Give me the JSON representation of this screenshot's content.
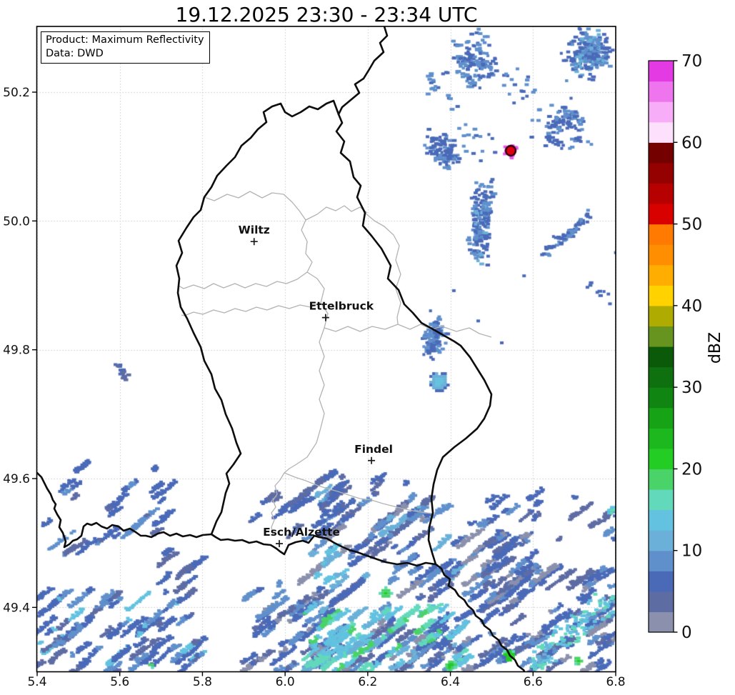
{
  "title": "19.12.2025 23:30 - 23:34 UTC",
  "info_box": {
    "line1": "Product: Maximum Reflectivity",
    "line2": "Data: DWD"
  },
  "chart_data": {
    "type": "heatmap",
    "title": "19.12.2025 23:30 - 23:34 UTC",
    "x_axis": "longitude_deg_east",
    "y_axis": "latitude_deg_north",
    "x_ticks": [
      5.4,
      5.6,
      5.8,
      6.0,
      6.2,
      6.4,
      6.6,
      6.8
    ],
    "x_tick_labels": [
      "5.4",
      "5.6",
      "5.8",
      "6.0",
      "6.2",
      "6.4",
      "6.6",
      "6.8"
    ],
    "y_ticks": [
      49.4,
      49.6,
      49.8,
      50.0,
      50.2
    ],
    "y_tick_labels": [
      "49.4",
      "49.6",
      "49.8",
      "50.0",
      "50.2"
    ],
    "x_range": [
      5.4,
      6.8
    ],
    "y_range": [
      49.3,
      50.3
    ],
    "grid": true,
    "legend_position": "right",
    "colorbar": {
      "label": "dBZ",
      "min": 0,
      "max": 70,
      "ticks": [
        0,
        10,
        20,
        30,
        40,
        50,
        60,
        70
      ]
    },
    "regions": [
      {
        "area": "southern precipitation band across France / southern Luxembourg",
        "lon": [
          5.4,
          6.8
        ],
        "lat": [
          49.3,
          49.62
        ],
        "dbz": [
          0,
          22
        ],
        "note": "widespread light rain 0-12 dBZ with embedded 12-22 dBZ cyan/green cells, diagonal NE-SW streak texture"
      },
      {
        "area": "north-east scattered echoes (Eifel, Germany)",
        "lon": [
          6.33,
          6.8
        ],
        "lat": [
          49.9,
          50.3
        ],
        "dbz": [
          0,
          12
        ],
        "note": "patchy light blue echoes, densest in top-right corner"
      },
      {
        "area": "isolated point artifact",
        "lon": [
          6.546
        ],
        "lat": [
          50.109
        ],
        "dbz": [
          50,
          70
        ],
        "note": "red core with magenta halo"
      },
      {
        "area": "small round cell",
        "lon": [
          6.368
        ],
        "lat": [
          49.753
        ],
        "dbz": [
          5,
          15
        ],
        "note": "cyan-centred blob"
      },
      {
        "area": "small cell cluster",
        "lon": [
          6.358
        ],
        "lat": [
          49.822
        ],
        "dbz": [
          0,
          10
        ]
      },
      {
        "area": "tiny echo streak",
        "lon": [
          5.6
        ],
        "lat": [
          49.77
        ],
        "dbz": [
          0,
          8
        ]
      }
    ]
  },
  "colorbar": {
    "label": "dBZ",
    "min": 0,
    "max": 70,
    "step_dbz": 2.5,
    "tick_values": [
      0,
      10,
      20,
      30,
      40,
      50,
      60,
      70
    ],
    "tick_labels": [
      "0",
      "10",
      "20",
      "30",
      "40",
      "50",
      "60",
      "70"
    ],
    "colors": [
      "#8b90ac",
      "#5e6ca4",
      "#4a6ab8",
      "#6090cc",
      "#6ab0d8",
      "#62c2e0",
      "#62d9bb",
      "#49d369",
      "#23cd23",
      "#1db81d",
      "#16a316",
      "#118511",
      "#0e700e",
      "#0a5a0a",
      "#66941e",
      "#b0ab00",
      "#ffd200",
      "#ffad00",
      "#ff8f00",
      "#ff7a00",
      "#d90000",
      "#b70000",
      "#950000",
      "#740000",
      "#fce0fc",
      "#f7adf7",
      "#ef75ef",
      "#e33ae3"
    ]
  },
  "map": {
    "cities": [
      {
        "name": "Wiltz",
        "lon": 5.925,
        "lat": 49.968,
        "label_dx": 0
      },
      {
        "name": "Ettelbruck",
        "lon": 6.098,
        "lat": 49.85,
        "label_dx": 22
      },
      {
        "name": "Findel",
        "lon": 6.209,
        "lat": 49.628,
        "label_dx": 3
      },
      {
        "name": "Esch/Alzette",
        "lon": 5.986,
        "lat": 49.499,
        "label_dx": 31
      }
    ]
  },
  "radar": {
    "artifact": {
      "lon": 6.546,
      "lat": 50.109,
      "core_color": "#df0012",
      "ring_color": "#240008",
      "halo_color": "#ee55ee"
    },
    "points": [
      {
        "lon": 6.404,
        "lat": 49.894,
        "c": 2
      },
      {
        "lon": 6.463,
        "lat": 49.847,
        "c": 2
      },
      {
        "lon": 6.52,
        "lat": 49.813,
        "c": 2
      },
      {
        "lon": 6.574,
        "lat": 49.917,
        "c": 2
      }
    ],
    "scatters": [
      {
        "lon": 6.728,
        "lat": 50.262,
        "rx": 0.075,
        "ry": 0.048,
        "n": 150,
        "angle": -35,
        "colors": [
          2,
          2,
          2,
          3,
          3,
          4
        ]
      },
      {
        "lon": 6.67,
        "lat": 50.15,
        "rx": 0.095,
        "ry": 0.062,
        "n": 60,
        "angle": -30,
        "colors": [
          2,
          2,
          3
        ]
      },
      {
        "lon": 6.451,
        "lat": 50.252,
        "rx": 0.078,
        "ry": 0.048,
        "n": 85,
        "angle": -20,
        "colors": [
          2,
          2,
          3,
          3
        ]
      },
      {
        "lon": 6.44,
        "lat": 50.128,
        "rx": 0.115,
        "ry": 0.072,
        "n": 26,
        "angle": 0,
        "colors": [
          2,
          3
        ],
        "single": true
      },
      {
        "lon": 6.472,
        "lat": 49.999,
        "rx": 0.03,
        "ry": 0.092,
        "n": 120,
        "angle": 4,
        "colors": [
          2,
          2,
          2,
          3,
          3,
          4
        ]
      },
      {
        "lon": 6.373,
        "lat": 50.113,
        "rx": 0.04,
        "ry": 0.044,
        "n": 55,
        "angle": -30,
        "colors": [
          2,
          2,
          3
        ]
      },
      {
        "lon": 6.76,
        "lat": 49.905,
        "rx": 0.075,
        "ry": 0.06,
        "n": 10,
        "angle": 0,
        "colors": [
          2
        ],
        "single": true
      },
      {
        "lon": 6.358,
        "lat": 49.822,
        "rx": 0.026,
        "ry": 0.044,
        "n": 70,
        "angle": 8,
        "colors": [
          2,
          2,
          3,
          3
        ]
      },
      {
        "lon": 6.56,
        "lat": 50.21,
        "rx": 0.05,
        "ry": 0.04,
        "n": 16,
        "angle": 0,
        "colors": [
          2,
          3
        ],
        "single": true
      },
      {
        "lon": 6.36,
        "lat": 50.21,
        "rx": 0.045,
        "ry": 0.035,
        "n": 12,
        "angle": -25,
        "colors": [
          2,
          3
        ]
      }
    ],
    "bands": [
      {
        "lon": [
          5.4,
          5.72
        ],
        "lat": [
          49.485,
          49.624
        ],
        "n": 26,
        "angle": -38,
        "len": 36,
        "colors": [
          1,
          2,
          2,
          2,
          3
        ]
      },
      {
        "lon": [
          5.4,
          5.791
        ],
        "lat": [
          49.301,
          49.425
        ],
        "n": 58,
        "angle": -38,
        "len": 46,
        "colors": [
          1,
          2,
          2,
          2,
          3,
          3,
          5
        ]
      },
      {
        "lon": [
          5.7,
          5.835
        ],
        "lat": [
          49.42,
          49.515
        ],
        "n": 10,
        "angle": -38,
        "len": 30,
        "colors": [
          1,
          2
        ]
      },
      {
        "lon": [
          5.9,
          6.125
        ],
        "lat": [
          49.301,
          49.44
        ],
        "n": 40,
        "angle": -38,
        "len": 50,
        "colors": [
          2,
          2,
          2,
          1,
          3,
          3,
          0
        ]
      },
      {
        "lon": [
          6.02,
          6.42
        ],
        "lat": [
          49.301,
          49.585
        ],
        "n": 110,
        "angle": -38,
        "len": 58,
        "colors": [
          2,
          2,
          2,
          1,
          1,
          3,
          3,
          0,
          4
        ]
      },
      {
        "lon": [
          6.09,
          6.31
        ],
        "lat": [
          49.575,
          49.615
        ],
        "n": 9,
        "angle": -38,
        "len": 22,
        "colors": [
          1,
          2
        ]
      },
      {
        "lon": [
          6.02,
          6.451
        ],
        "lat": [
          49.301,
          49.403
        ],
        "n": 55,
        "angle": -38,
        "len": 46,
        "colors": [
          5,
          5,
          5,
          6,
          6,
          4,
          7
        ]
      },
      {
        "lon": [
          6.064,
          6.131
        ],
        "lat": [
          49.436,
          49.509
        ],
        "n": 9,
        "angle": -38,
        "len": 24,
        "colors": [
          5,
          4
        ]
      },
      {
        "lon": [
          6.42,
          6.8
        ],
        "lat": [
          49.495,
          49.578
        ],
        "n": 22,
        "angle": -35,
        "len": 34,
        "colors": [
          2,
          2,
          3,
          1
        ]
      },
      {
        "lon": [
          6.55,
          6.8
        ],
        "lat": [
          49.301,
          49.462
        ],
        "n": 60,
        "angle": -35,
        "len": 50,
        "colors": [
          2,
          2,
          1,
          3,
          0
        ]
      },
      {
        "lon": [
          6.42,
          6.585
        ],
        "lat": [
          49.301,
          49.525
        ],
        "n": 46,
        "angle": -35,
        "len": 46,
        "colors": [
          2,
          2,
          1,
          3,
          0
        ]
      },
      {
        "lon": [
          5.905,
          6.125
        ],
        "lat": [
          49.517,
          49.575
        ],
        "n": 13,
        "angle": -38,
        "len": 24,
        "colors": [
          1,
          2
        ]
      }
    ],
    "chains": [
      {
        "from": [
          6.616,
          49.946
        ],
        "to": [
          6.731,
          50.012
        ],
        "thick": 7,
        "n": 46,
        "colors": [
          2,
          2,
          3
        ]
      },
      {
        "from": [
          5.588,
          49.782
        ],
        "to": [
          5.61,
          49.76
        ],
        "thick": 4,
        "n": 14,
        "colors": [
          1,
          2
        ]
      },
      {
        "from": [
          6.589,
          49.312
        ],
        "to": [
          6.788,
          49.42
        ],
        "thick": 20,
        "n": 95,
        "colors": [
          5,
          5,
          6,
          4
        ]
      }
    ],
    "blobs": [
      {
        "lon": 6.368,
        "lat": 49.753,
        "r": 15,
        "core": 5,
        "mid": 4,
        "edge": 2
      },
      {
        "lon": 6.788,
        "lat": 49.552,
        "r": 9,
        "core": 6,
        "mid": 5,
        "edge": 2
      },
      {
        "lon": 6.24,
        "lat": 49.424,
        "r": 8,
        "core": 8,
        "mid": 7,
        "edge": 6
      },
      {
        "lon": 6.538,
        "lat": 49.327,
        "r": 10,
        "core": 8,
        "mid": 8,
        "edge": 6
      },
      {
        "lon": 6.396,
        "lat": 49.312,
        "r": 9,
        "core": 8,
        "mid": 7,
        "edge": 6
      },
      {
        "lon": 5.67,
        "lat": 49.312,
        "r": 5,
        "core": 7,
        "mid": 7,
        "edge": 6
      },
      {
        "lon": 6.705,
        "lat": 49.32,
        "r": 7,
        "core": 8,
        "mid": 7,
        "edge": 6
      }
    ]
  }
}
